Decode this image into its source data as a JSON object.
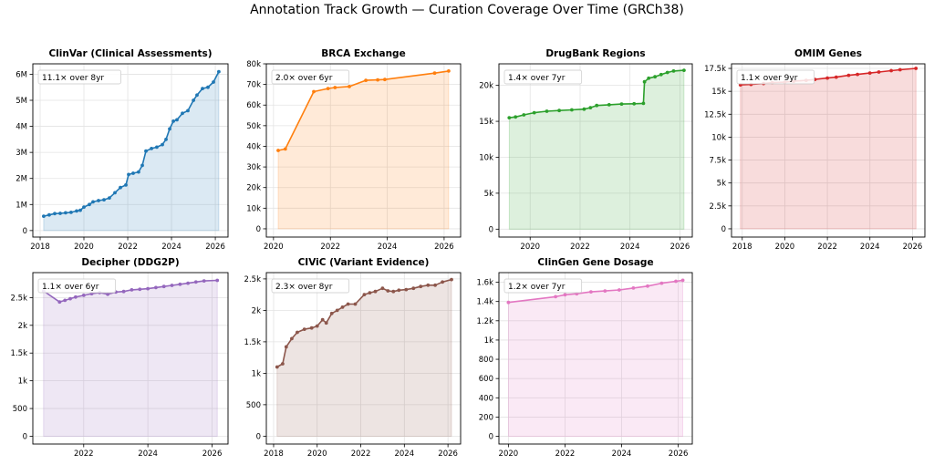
{
  "suptitle": "Annotation Track Growth — Curation Coverage Over Time (GRCh38)",
  "chart_data": [
    {
      "type": "area",
      "title": "ClinVar (Clinical Assessments)",
      "annotation": "11.1× over 8yr",
      "color": "#1f77b4",
      "xlim": [
        "2017-09-01",
        "2026-08-01"
      ],
      "xticks": [
        "2018",
        "2020",
        "2022",
        "2024",
        "2026"
      ],
      "ylim": [
        -250000,
        6400000
      ],
      "yticks": [
        0,
        1000000,
        2000000,
        3000000,
        4000000,
        5000000,
        6000000
      ],
      "ytick_labels": [
        "0",
        "1M",
        "2M",
        "3M",
        "4M",
        "5M",
        "6M"
      ],
      "x": [
        "2018-03-01",
        "2018-06-01",
        "2018-09-01",
        "2018-12-01",
        "2019-03-01",
        "2019-06-01",
        "2019-09-01",
        "2019-11-01",
        "2020-01-01",
        "2020-04-01",
        "2020-06-01",
        "2020-09-01",
        "2020-12-01",
        "2021-03-01",
        "2021-06-01",
        "2021-09-01",
        "2021-12-01",
        "2022-01-15",
        "2022-04-01",
        "2022-07-01",
        "2022-09-01",
        "2022-11-01",
        "2023-02-01",
        "2023-05-01",
        "2023-08-01",
        "2023-10-01",
        "2023-12-01",
        "2024-02-01",
        "2024-04-01",
        "2024-07-01",
        "2024-10-01",
        "2025-01-01",
        "2025-03-01",
        "2025-06-01",
        "2025-09-01",
        "2025-12-01",
        "2026-03-01"
      ],
      "values": [
        550000,
        600000,
        650000,
        660000,
        680000,
        700000,
        750000,
        780000,
        900000,
        1000000,
        1100000,
        1150000,
        1180000,
        1250000,
        1450000,
        1650000,
        1750000,
        2150000,
        2200000,
        2250000,
        2500000,
        3050000,
        3150000,
        3200000,
        3300000,
        3500000,
        3900000,
        4200000,
        4250000,
        4500000,
        4600000,
        5000000,
        5200000,
        5450000,
        5500000,
        5700000,
        6100000
      ]
    },
    {
      "type": "area",
      "title": "BRCA Exchange",
      "annotation": "2.0× over 6yr",
      "color": "#ff7f0e",
      "xlim": [
        "2019-10-01",
        "2026-08-01"
      ],
      "xticks": [
        "2020",
        "2022",
        "2024",
        "2026"
      ],
      "ylim": [
        -4000,
        80000
      ],
      "yticks": [
        0,
        10000,
        20000,
        30000,
        40000,
        50000,
        60000,
        70000,
        80000
      ],
      "ytick_labels": [
        "0",
        "10k",
        "20k",
        "30k",
        "40k",
        "50k",
        "60k",
        "70k",
        "80k"
      ],
      "x": [
        "2020-03-01",
        "2020-06-01",
        "2021-06-01",
        "2021-12-01",
        "2022-03-01",
        "2022-09-01",
        "2023-04-01",
        "2023-09-01",
        "2023-12-01",
        "2025-09-01",
        "2026-03-01"
      ],
      "values": [
        38000,
        38700,
        66500,
        68000,
        68500,
        69000,
        72000,
        72200,
        72400,
        75500,
        76500
      ]
    },
    {
      "type": "area",
      "title": "DrugBank Regions",
      "annotation": "1.4× over 7yr",
      "color": "#2ca02c",
      "xlim": [
        "2018-10-01",
        "2026-07-01"
      ],
      "xticks": [
        "2020",
        "2022",
        "2024",
        "2026"
      ],
      "ylim": [
        -1100,
        23000
      ],
      "yticks": [
        0,
        5000,
        10000,
        15000,
        20000
      ],
      "ytick_labels": [
        "0",
        "5k",
        "10k",
        "15k",
        "20k"
      ],
      "x": [
        "2019-03-01",
        "2019-06-01",
        "2019-10-01",
        "2020-03-01",
        "2020-09-01",
        "2021-03-01",
        "2021-09-01",
        "2022-03-01",
        "2022-06-01",
        "2022-09-01",
        "2023-03-01",
        "2023-09-01",
        "2024-03-01",
        "2024-07-15",
        "2024-08-01",
        "2024-10-01",
        "2025-01-01",
        "2025-04-01",
        "2025-07-01",
        "2025-10-01",
        "2026-03-01"
      ],
      "values": [
        15500,
        15600,
        15900,
        16200,
        16400,
        16500,
        16600,
        16700,
        16900,
        17200,
        17300,
        17400,
        17450,
        17500,
        20500,
        21000,
        21200,
        21500,
        21800,
        22000,
        22100
      ]
    },
    {
      "type": "area",
      "title": "OMIM Genes",
      "annotation": "1.1× over 9yr",
      "color": "#d62728",
      "xlim": [
        "2017-07-01",
        "2026-08-01"
      ],
      "xticks": [
        "2018",
        "2020",
        "2022",
        "2024",
        "2026"
      ],
      "ylim": [
        -900,
        18000
      ],
      "yticks": [
        0,
        2500,
        5000,
        7500,
        10000,
        12500,
        15000,
        17500
      ],
      "ytick_labels": [
        "0",
        "2.5k",
        "5k",
        "7.5k",
        "10k",
        "12.5k",
        "15k",
        "17.5k"
      ],
      "x": [
        "2017-12-01",
        "2018-06-01",
        "2019-01-01",
        "2019-06-01",
        "2020-01-01",
        "2020-06-01",
        "2021-01-01",
        "2021-06-01",
        "2022-01-01",
        "2022-06-01",
        "2023-01-01",
        "2023-06-01",
        "2024-01-01",
        "2024-06-01",
        "2025-01-01",
        "2025-06-01",
        "2026-03-01"
      ],
      "values": [
        15700,
        15750,
        15850,
        15950,
        16000,
        16100,
        16200,
        16300,
        16450,
        16550,
        16750,
        16850,
        17000,
        17100,
        17250,
        17350,
        17500
      ]
    },
    {
      "type": "area",
      "title": "Decipher (DDG2P)",
      "annotation": "1.1× over 6yr",
      "color": "#9467bd",
      "xlim": [
        "2020-06-01",
        "2026-07-01"
      ],
      "xticks": [
        "2022",
        "2024",
        "2026"
      ],
      "ylim": [
        -140,
        2950
      ],
      "yticks": [
        0,
        500,
        1000,
        1500,
        2000,
        2500
      ],
      "ytick_labels": [
        "0",
        "500",
        "1k",
        "1.5k",
        "2k",
        "2.5k"
      ],
      "x": [
        "2020-10-01",
        "2021-04-01",
        "2021-06-01",
        "2021-08-01",
        "2021-10-01",
        "2022-01-01",
        "2022-04-01",
        "2022-07-01",
        "2022-10-01",
        "2023-01-01",
        "2023-04-01",
        "2023-07-01",
        "2023-10-01",
        "2024-01-01",
        "2024-04-01",
        "2024-07-01",
        "2024-10-01",
        "2025-01-01",
        "2025-04-01",
        "2025-07-01",
        "2025-10-01",
        "2026-03-01"
      ],
      "values": [
        2620,
        2420,
        2450,
        2480,
        2510,
        2540,
        2570,
        2590,
        2560,
        2600,
        2610,
        2640,
        2650,
        2660,
        2680,
        2700,
        2720,
        2740,
        2760,
        2780,
        2800,
        2810
      ]
    },
    {
      "type": "area",
      "title": "CIViC (Variant Evidence)",
      "annotation": "2.3× over 8yr",
      "color": "#8c564b",
      "xlim": [
        "2017-09-01",
        "2026-08-01"
      ],
      "xticks": [
        "2018",
        "2020",
        "2022",
        "2024",
        "2026"
      ],
      "ylim": [
        -125,
        2600
      ],
      "yticks": [
        0,
        500,
        1000,
        1500,
        2000,
        2500
      ],
      "ytick_labels": [
        "0",
        "500",
        "1k",
        "1.5k",
        "2k",
        "2.5k"
      ],
      "x": [
        "2018-03-01",
        "2018-06-01",
        "2018-08-01",
        "2018-11-01",
        "2019-02-01",
        "2019-06-01",
        "2019-10-01",
        "2020-01-01",
        "2020-04-01",
        "2020-06-01",
        "2020-09-01",
        "2020-12-01",
        "2021-03-01",
        "2021-06-01",
        "2021-10-01",
        "2022-03-01",
        "2022-06-01",
        "2022-09-01",
        "2023-01-01",
        "2023-04-01",
        "2023-07-01",
        "2023-10-01",
        "2024-02-01",
        "2024-06-01",
        "2024-10-01",
        "2025-02-01",
        "2025-06-01",
        "2025-10-01",
        "2026-03-01"
      ],
      "values": [
        1100,
        1150,
        1420,
        1550,
        1650,
        1700,
        1720,
        1750,
        1850,
        1800,
        1950,
        2000,
        2050,
        2100,
        2100,
        2250,
        2280,
        2300,
        2350,
        2310,
        2300,
        2320,
        2330,
        2350,
        2380,
        2400,
        2400,
        2450,
        2490
      ]
    },
    {
      "type": "area",
      "title": "ClinGen Gene Dosage",
      "annotation": "1.2× over 7yr",
      "color": "#e377c2",
      "xlim": [
        "2019-09-01",
        "2026-07-01"
      ],
      "xticks": [
        "2020",
        "2022",
        "2024",
        "2026"
      ],
      "ylim": [
        -80,
        1700
      ],
      "yticks": [
        0,
        200,
        400,
        600,
        800,
        1000,
        1200,
        1400,
        1600
      ],
      "ytick_labels": [
        "0",
        "200",
        "400",
        "600",
        "800",
        "1k",
        "1.2k",
        "1.4k",
        "1.6k"
      ],
      "x": [
        "2020-01-01",
        "2021-09-01",
        "2022-01-01",
        "2022-06-01",
        "2022-12-01",
        "2023-06-01",
        "2023-12-01",
        "2024-06-01",
        "2024-12-01",
        "2025-06-01",
        "2025-12-01",
        "2026-03-01"
      ],
      "values": [
        1390,
        1450,
        1470,
        1480,
        1500,
        1510,
        1520,
        1540,
        1560,
        1590,
        1610,
        1620
      ]
    }
  ]
}
